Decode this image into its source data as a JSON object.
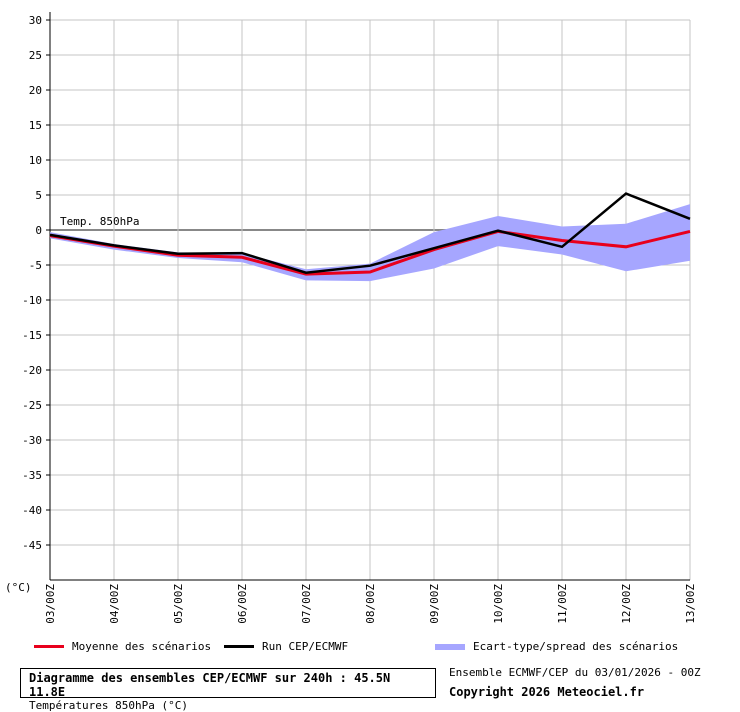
{
  "chart_data": {
    "type": "line",
    "title": "Diagramme des ensembles CEP/ECMWF sur 240h : 45.5N 11.8E",
    "subtitle": "Températures 850hPa (°C)",
    "ylabel": "(°C)",
    "inner_label": "Temp. 850hPa",
    "ylim": [
      -50,
      30
    ],
    "yticks": [
      30,
      25,
      20,
      15,
      10,
      5,
      0,
      -5,
      -10,
      -15,
      -20,
      -25,
      -30,
      -35,
      -40,
      -45
    ],
    "categories": [
      "03/00Z",
      "04/00Z",
      "05/00Z",
      "06/00Z",
      "07/00Z",
      "08/00Z",
      "09/00Z",
      "10/00Z",
      "11/00Z",
      "12/00Z",
      "13/00Z"
    ],
    "grid": true,
    "series": [
      {
        "name": "Moyenne des scénarios",
        "color": "#e8001c",
        "x": [
          0,
          1,
          2,
          3,
          4,
          5,
          6,
          7,
          8,
          9,
          10
        ],
        "values": [
          -0.8,
          -2.3,
          -3.6,
          -3.9,
          -6.3,
          -6.0,
          -2.8,
          -0.2,
          -1.5,
          -2.4,
          -0.2
        ]
      },
      {
        "name": "Run CEP/ECMWF",
        "color": "#000000",
        "x": [
          0,
          1,
          2,
          3,
          4,
          5,
          6,
          7,
          8,
          9,
          10
        ],
        "values": [
          -0.7,
          -2.2,
          -3.4,
          -3.3,
          -6.1,
          -5.1,
          -2.6,
          -0.1,
          -2.4,
          5.2,
          1.6
        ]
      },
      {
        "name": "Ecart-type/spread des scénarios",
        "type": "band",
        "color": "#a6a6ff",
        "x": [
          0,
          1,
          2,
          3,
          4,
          5,
          6,
          7,
          8,
          9,
          10
        ],
        "upper": [
          -0.3,
          -2.0,
          -3.2,
          -3.3,
          -5.6,
          -4.8,
          -0.3,
          2.0,
          0.5,
          0.9,
          3.7
        ],
        "lower": [
          -1.2,
          -2.8,
          -4.0,
          -4.6,
          -7.2,
          -7.3,
          -5.5,
          -2.3,
          -3.5,
          -5.9,
          -4.4
        ]
      }
    ]
  },
  "info": {
    "run": "Ensemble ECMWF/CEP du 03/01/2026 - 00Z",
    "copyright": "Copyright 2026 Meteociel.fr"
  }
}
